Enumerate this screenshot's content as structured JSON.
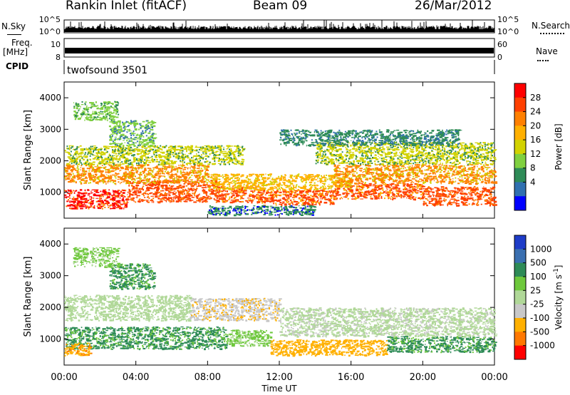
{
  "header": {
    "title": "Rankin Inlet (fitACF)",
    "beam": "Beam 09",
    "date": "26/Mar/2012"
  },
  "status_panels": {
    "nsky_label": "N.Sky",
    "nsky_ticks": [
      "10^5",
      "10^0"
    ],
    "nsearch_label": "N.Search",
    "nsearch_ticks": [
      "10^5",
      "10^0"
    ],
    "freq_label": "Freq.",
    "freq_unit": "[MHz]",
    "freq_ticks": [
      "10",
      "8"
    ],
    "nave_label": "Nave",
    "nave_ticks": [
      "60",
      "0"
    ],
    "cpid_label": "CPID",
    "cpid_value": "twofsound 3501"
  },
  "chart_data": [
    {
      "type": "heatmap",
      "name": "power",
      "xlabel": "Time UT",
      "ylabel": "Slant Range [km]",
      "xlim": [
        0,
        24
      ],
      "ylim": [
        180,
        4500
      ],
      "xticks": [
        "00:00",
        "04:00",
        "08:00",
        "12:00",
        "16:00",
        "20:00",
        "00:00"
      ],
      "yticks": [
        1000,
        2000,
        3000,
        4000
      ],
      "colorbar": {
        "label": "Power [dB]",
        "ticks": [
          "28",
          "24",
          "20",
          "16",
          "12",
          "8",
          "4"
        ],
        "colors": [
          "#ff0000",
          "#ff4000",
          "#ff8000",
          "#ffb000",
          "#d2d200",
          "#80d040",
          "#2e8b57",
          "#3070b0",
          "#0000ff"
        ]
      },
      "regions": [
        {
          "t0": 0.0,
          "t1": 3.5,
          "r0": 500,
          "r1": 1100,
          "value": 29
        },
        {
          "t0": 3.5,
          "t1": 8.5,
          "r0": 700,
          "r1": 1400,
          "value": 27
        },
        {
          "t0": 8.5,
          "t1": 11.0,
          "r0": 700,
          "r1": 1200,
          "value": 26
        },
        {
          "t0": 11.0,
          "t1": 15.0,
          "r0": 600,
          "r1": 1100,
          "value": 26
        },
        {
          "t0": 15.0,
          "t1": 20.0,
          "r0": 800,
          "r1": 1300,
          "value": 25
        },
        {
          "t0": 20.0,
          "t1": 24.0,
          "r0": 600,
          "r1": 1200,
          "value": 27
        },
        {
          "t0": 0.0,
          "t1": 8.0,
          "r0": 1300,
          "r1": 1900,
          "value": 21
        },
        {
          "t0": 8.0,
          "t1": 16.0,
          "r0": 1100,
          "r1": 1600,
          "value": 19
        },
        {
          "t0": 15.0,
          "t1": 24.0,
          "r0": 1300,
          "r1": 1900,
          "value": 21
        },
        {
          "t0": 0.0,
          "t1": 10.0,
          "r0": 1900,
          "r1": 2500,
          "value": 14
        },
        {
          "t0": 14.0,
          "t1": 24.0,
          "r0": 1900,
          "r1": 2600,
          "value": 13
        },
        {
          "t0": 2.5,
          "t1": 5.0,
          "r0": 2500,
          "r1": 3300,
          "value": 10
        },
        {
          "t0": 12.0,
          "t1": 22.0,
          "r0": 2500,
          "r1": 3000,
          "value": 8
        },
        {
          "t0": 0.5,
          "t1": 3.0,
          "r0": 3300,
          "r1": 3900,
          "value": 12
        },
        {
          "t0": 8.0,
          "t1": 14.0,
          "r0": 300,
          "r1": 600,
          "value": 6
        }
      ]
    },
    {
      "type": "heatmap",
      "name": "velocity",
      "xlabel": "Time UT",
      "ylabel": "Slant Range [km]",
      "xlim": [
        0,
        24
      ],
      "ylim": [
        180,
        4500
      ],
      "xticks": [
        "00:00",
        "04:00",
        "08:00",
        "12:00",
        "16:00",
        "20:00",
        "00:00"
      ],
      "yticks": [
        1000,
        2000,
        3000,
        4000
      ],
      "colorbar": {
        "label": "Velocity [m s^-1]",
        "unit_base": "Velocity [m s",
        "unit_exp": "-1",
        "unit_close": "]",
        "ticks": [
          "1000",
          "500",
          "100",
          "25",
          "-25",
          "-100",
          "-500",
          "-1000"
        ],
        "colors": [
          "#1e3cc8",
          "#3a6fb0",
          "#2e8b57",
          "#6ec83c",
          "#b0d898",
          "#c8c8c8",
          "#ffb000",
          "#ff7800",
          "#ff0000"
        ]
      },
      "regions": [
        {
          "t0": 0.0,
          "t1": 9.0,
          "r0": 700,
          "r1": 1400,
          "value": 120
        },
        {
          "t0": 9.0,
          "t1": 11.5,
          "r0": 800,
          "r1": 1300,
          "value": 40
        },
        {
          "t0": 11.5,
          "t1": 18.0,
          "r0": 500,
          "r1": 1000,
          "value": -140
        },
        {
          "t0": 18.0,
          "t1": 24.0,
          "r0": 600,
          "r1": 1100,
          "value": 110
        },
        {
          "t0": 0.0,
          "t1": 7.0,
          "r0": 1600,
          "r1": 2400,
          "value": 0
        },
        {
          "t0": 12.0,
          "t1": 24.0,
          "r0": 1100,
          "r1": 2000,
          "value": -10
        },
        {
          "t0": 7.0,
          "t1": 12.0,
          "r0": 1600,
          "r1": 2300,
          "value": -60
        },
        {
          "t0": 2.5,
          "t1": 5.0,
          "r0": 2600,
          "r1": 3400,
          "value": 150
        },
        {
          "t0": 0.0,
          "t1": 1.5,
          "r0": 500,
          "r1": 900,
          "value": -200
        },
        {
          "t0": 0.5,
          "t1": 3.0,
          "r0": 3300,
          "r1": 3900,
          "value": 60
        }
      ]
    }
  ]
}
